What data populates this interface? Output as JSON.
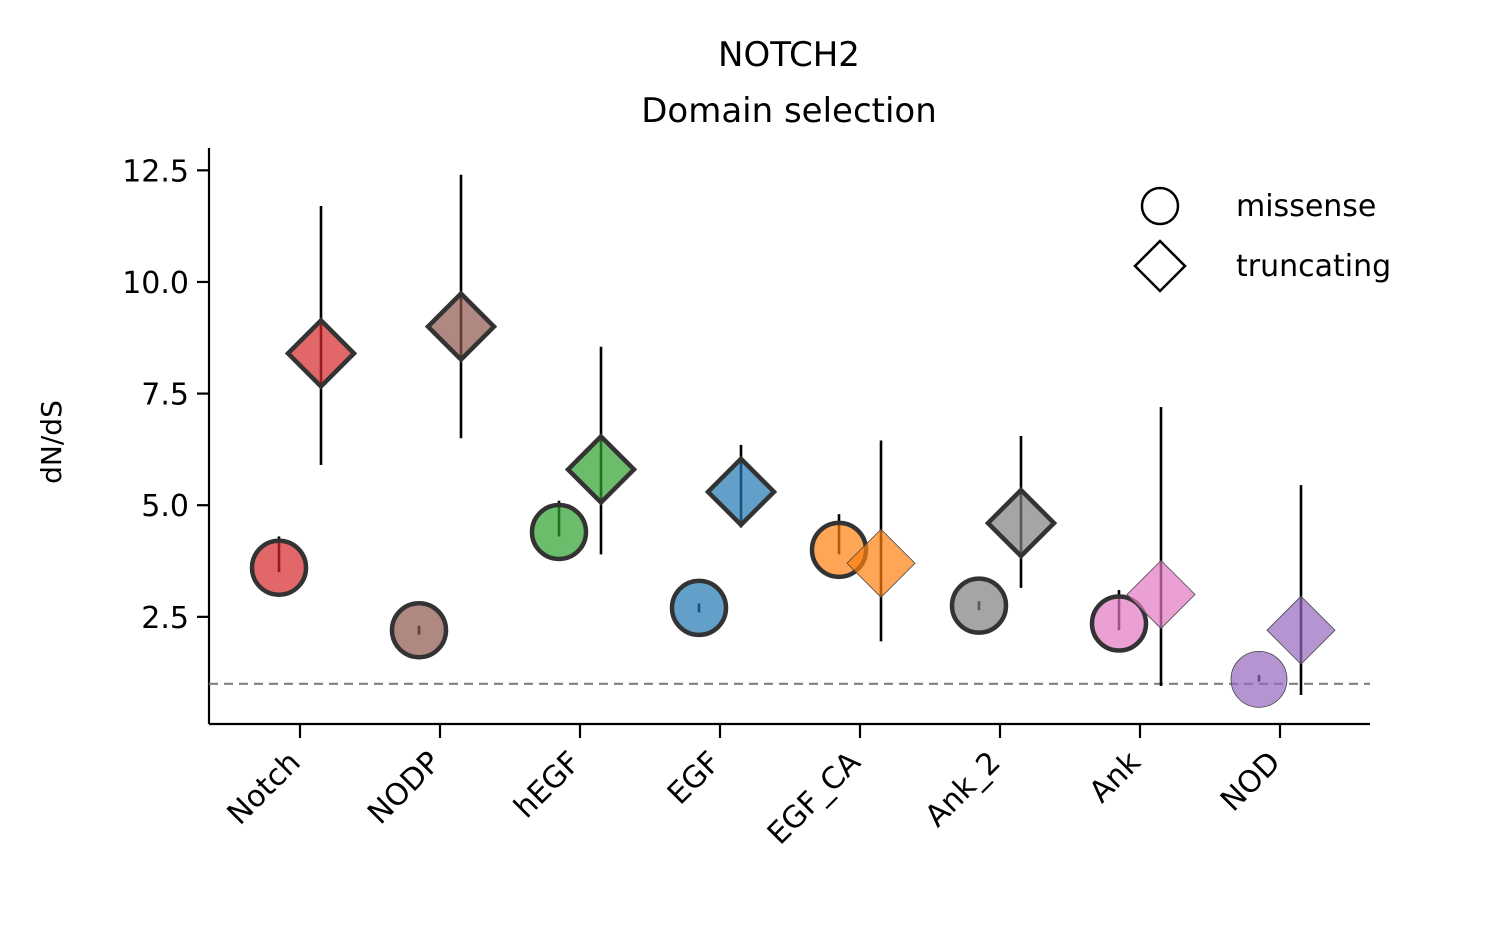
{
  "chart_data": {
    "type": "scatter",
    "title": "NOTCH2\nDomain selection",
    "title_lines": [
      "NOTCH2",
      "Domain selection"
    ],
    "xlabel": "",
    "ylabel": "dN/dS",
    "categories": [
      "Notch",
      "NODP",
      "hEGF",
      "EGF",
      "EGF_CA",
      "Ank_2",
      "Ank",
      "NOD"
    ],
    "colors": [
      "#d62728",
      "#8c564b",
      "#2ca02c",
      "#1f77b4",
      "#ff7f0e",
      "#7f7f7f",
      "#e377c2",
      "#9467bd"
    ],
    "ylim": [
      0.1,
      13.0
    ],
    "yticks": [
      2.5,
      5.0,
      7.5,
      10.0,
      12.5
    ],
    "ytick_labels": [
      "2.5",
      "5.0",
      "7.5",
      "10.0",
      "12.5"
    ],
    "reference_line": 1.0,
    "legend_position": "top-right",
    "series": [
      {
        "name": "missense",
        "marker": "circle",
        "values": [
          3.6,
          2.2,
          4.4,
          2.7,
          4.0,
          2.75,
          2.35,
          1.1
        ],
        "err_low": [
          3.5,
          2.1,
          4.3,
          2.6,
          3.9,
          2.65,
          2.2,
          1.05
        ],
        "err_high": [
          4.3,
          2.3,
          5.1,
          2.8,
          4.8,
          2.85,
          3.1,
          1.2
        ],
        "strong_edge": [
          true,
          true,
          true,
          true,
          true,
          true,
          true,
          false
        ]
      },
      {
        "name": "truncating",
        "marker": "diamond",
        "values": [
          8.4,
          9.0,
          5.8,
          5.3,
          3.7,
          4.6,
          3.0,
          2.2
        ],
        "err_low": [
          5.9,
          6.5,
          3.9,
          4.5,
          1.95,
          3.15,
          0.95,
          0.75
        ],
        "err_high": [
          11.7,
          12.4,
          8.55,
          6.35,
          6.45,
          6.55,
          7.2,
          5.45
        ],
        "strong_edge": [
          true,
          true,
          true,
          true,
          false,
          true,
          false,
          false
        ]
      }
    ]
  }
}
